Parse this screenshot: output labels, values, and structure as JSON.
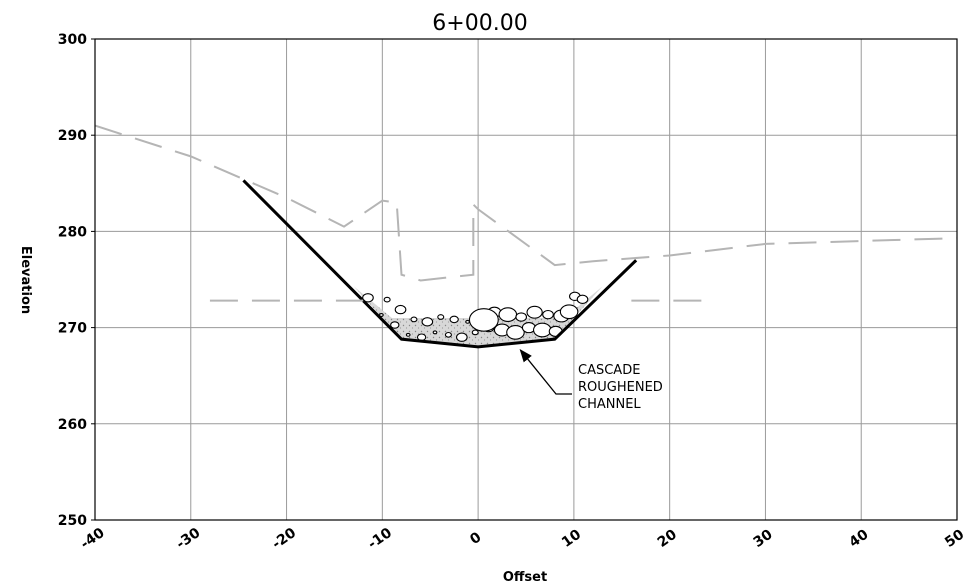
{
  "chart_data": {
    "type": "line",
    "title": "6+00.00",
    "xlabel": "Offset",
    "ylabel": "Elevation",
    "xlim": [
      -40,
      50
    ],
    "ylim": [
      250,
      300
    ],
    "x_ticks": [
      -40,
      -30,
      -20,
      -10,
      0,
      10,
      20,
      30,
      40,
      50
    ],
    "x_tick_labels": [
      "-40",
      "-30",
      "-20",
      "-10",
      "0",
      "10",
      "20",
      "30",
      "40",
      "50"
    ],
    "y_ticks": [
      250,
      260,
      270,
      280,
      290,
      300
    ],
    "y_tick_labels": [
      "250",
      "260",
      "270",
      "280",
      "290",
      "300"
    ],
    "grid": true,
    "series": [
      {
        "style": "solid-black",
        "x": [
          -24.5,
          -8,
          0,
          8,
          16.5
        ],
        "y": [
          285.3,
          268.8,
          268.0,
          268.8,
          277.0
        ]
      },
      {
        "style": "dashed-gray",
        "x": [
          -40,
          -30,
          -20,
          -14,
          -10,
          -8.5,
          -8,
          -6,
          -0.5,
          -0.5,
          -0.5,
          0,
          8,
          12,
          20,
          30,
          50
        ],
        "y": [
          291.0,
          287.8,
          283.5,
          280.5,
          283.2,
          283.0,
          275.5,
          274.9,
          275.5,
          282.0,
          282.8,
          282.3,
          276.5,
          276.9,
          277.5,
          278.7,
          279.3
        ]
      },
      {
        "style": "dashed-gray",
        "x": [
          -28,
          -12
        ],
        "y": [
          272.8,
          272.8
        ]
      },
      {
        "style": "dashed-gray",
        "x": [
          16,
          23.5
        ],
        "y": [
          272.8,
          272.8
        ]
      }
    ],
    "fill_region": {
      "x": [
        -13,
        -8,
        0,
        8,
        13,
        9,
        -9
      ],
      "y": [
        274.3,
        268.8,
        268.0,
        268.8,
        274.3,
        271.0,
        271.0
      ]
    },
    "annotations": [
      {
        "lines": [
          "CASCADE",
          "ROUGHENED",
          "CHANNEL"
        ],
        "points_to": [
          4,
          268.5
        ]
      }
    ]
  }
}
